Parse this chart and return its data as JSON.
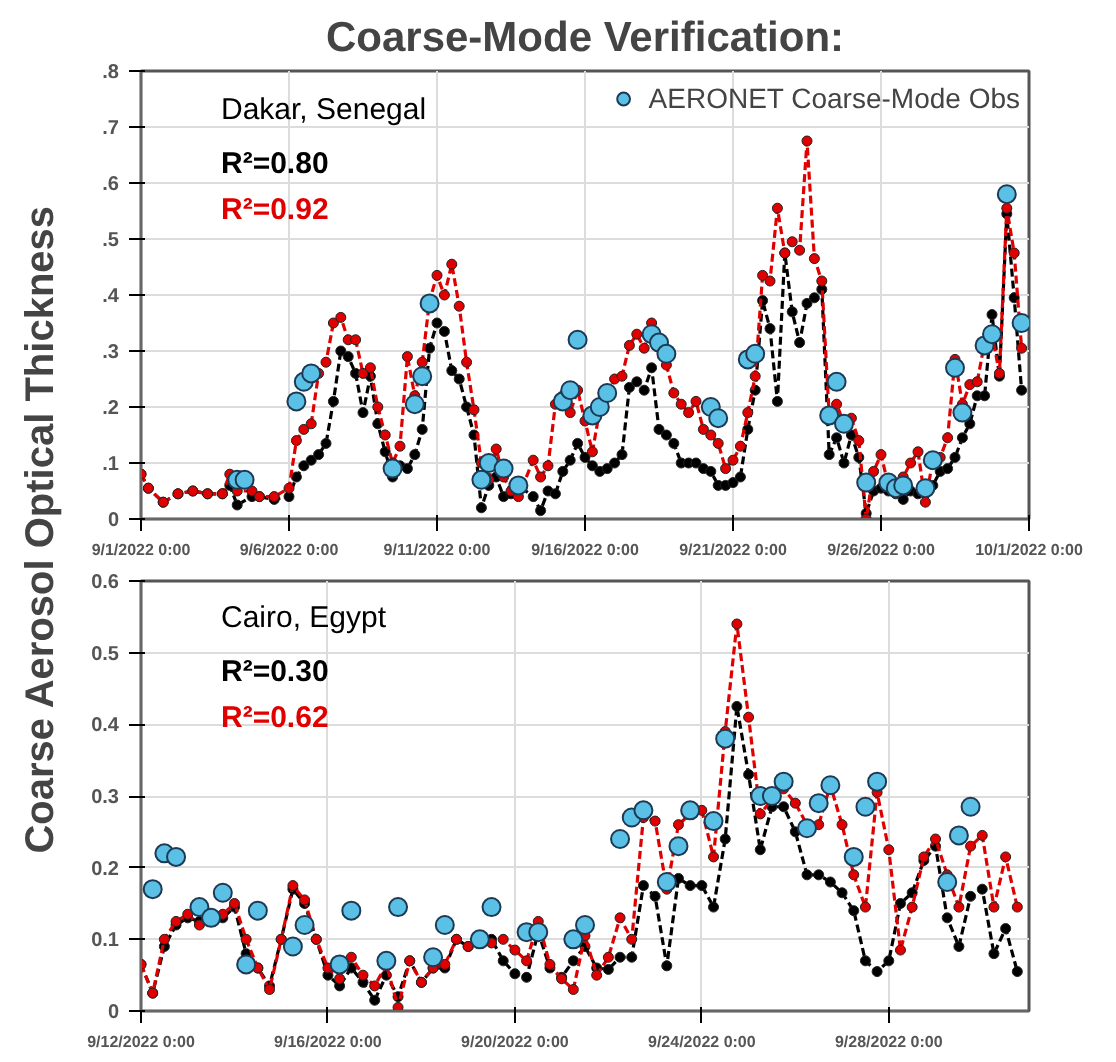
{
  "chart_data": [
    {
      "type": "line",
      "title": "Coarse-Mode Verification:",
      "ylabel": "Coarse Aerosol Optical Thickness",
      "annotations": [
        "Dakar, Senegal",
        "R²=0.80",
        "R²=0.92"
      ],
      "xlim": [
        "2022-09-01",
        "2022-10-01"
      ],
      "xticks": [
        {
          "value": "2022-09-01",
          "label": "9/1/2022 0:00"
        },
        {
          "value": "2022-09-06",
          "label": "9/6/2022 0:00"
        },
        {
          "value": "2022-09-11",
          "label": "9/11/2022 0:00"
        },
        {
          "value": "2022-09-16",
          "label": "9/16/2022 0:00"
        },
        {
          "value": "2022-09-21",
          "label": "9/21/2022 0:00"
        },
        {
          "value": "2022-09-26",
          "label": "9/26/2022 0:00"
        },
        {
          "value": "2022-10-01",
          "label": "10/1/2022 0:00"
        }
      ],
      "ylim": [
        0,
        0.8
      ],
      "yticks": [
        0,
        {
          "value": 0.1,
          "label": ".1"
        },
        {
          "value": 0.2,
          "label": ".2"
        },
        {
          "value": 0.3,
          "label": ".3"
        },
        {
          "value": 0.4,
          "label": ".4"
        },
        {
          "value": 0.5,
          "label": ".5"
        },
        {
          "value": 0.6,
          "label": ".6"
        },
        {
          "value": 0.7,
          "label": ".7"
        },
        {
          "value": 0.8,
          "label": ".8"
        }
      ],
      "grid": true,
      "legend": "top right",
      "marker": "circle",
      "line_style": "dashed",
      "x": [
        "2022-09-01T00:00",
        "2022-09-01T06:00",
        "2022-09-01T18:00",
        "2022-09-02T06:00",
        "2022-09-02T18:00",
        "2022-09-03T06:00",
        "2022-09-03T18:00",
        "2022-09-04T00:00",
        "2022-09-04T06:00",
        "2022-09-04T18:00",
        "2022-09-05T00:00",
        "2022-09-05T12:00",
        "2022-09-06T00:00",
        "2022-09-06T06:00",
        "2022-09-06T12:00",
        "2022-09-06T18:00",
        "2022-09-07T00:00",
        "2022-09-07T06:00",
        "2022-09-07T12:00",
        "2022-09-07T18:00",
        "2022-09-08T00:00",
        "2022-09-08T06:00",
        "2022-09-08T12:00",
        "2022-09-08T18:00",
        "2022-09-09T00:00",
        "2022-09-09T06:00",
        "2022-09-09T12:00",
        "2022-09-09T18:00",
        "2022-09-10T00:00",
        "2022-09-10T06:00",
        "2022-09-10T12:00",
        "2022-09-10T18:00",
        "2022-09-11T00:00",
        "2022-09-11T06:00",
        "2022-09-11T12:00",
        "2022-09-11T18:00",
        "2022-09-12T00:00",
        "2022-09-12T06:00",
        "2022-09-12T12:00",
        "2022-09-12T18:00",
        "2022-09-13T00:00",
        "2022-09-13T06:00",
        "2022-09-13T12:00",
        "2022-09-13T18:00",
        "2022-09-14T06:00",
        "2022-09-14T12:00",
        "2022-09-14T18:00",
        "2022-09-15T00:00",
        "2022-09-15T06:00",
        "2022-09-15T12:00",
        "2022-09-15T18:00",
        "2022-09-16T00:00",
        "2022-09-16T06:00",
        "2022-09-16T12:00",
        "2022-09-16T18:00",
        "2022-09-17T00:00",
        "2022-09-17T06:00",
        "2022-09-17T12:00",
        "2022-09-17T18:00",
        "2022-09-18T00:00",
        "2022-09-18T06:00",
        "2022-09-18T12:00",
        "2022-09-18T18:00",
        "2022-09-19T00:00",
        "2022-09-19T06:00",
        "2022-09-19T12:00",
        "2022-09-19T18:00",
        "2022-09-20T00:00",
        "2022-09-20T06:00",
        "2022-09-20T12:00",
        "2022-09-20T18:00",
        "2022-09-21T00:00",
        "2022-09-21T06:00",
        "2022-09-21T12:00",
        "2022-09-21T18:00",
        "2022-09-22T00:00",
        "2022-09-22T06:00",
        "2022-09-22T12:00",
        "2022-09-22T18:00",
        "2022-09-23T00:00",
        "2022-09-23T06:00",
        "2022-09-23T12:00",
        "2022-09-23T18:00",
        "2022-09-24T00:00",
        "2022-09-24T06:00",
        "2022-09-24T12:00",
        "2022-09-24T18:00",
        "2022-09-25T00:00",
        "2022-09-25T06:00",
        "2022-09-25T12:00",
        "2022-09-25T18:00",
        "2022-09-26T00:00",
        "2022-09-26T06:00",
        "2022-09-26T12:00",
        "2022-09-26T18:00",
        "2022-09-27T00:00",
        "2022-09-27T06:00",
        "2022-09-27T12:00",
        "2022-09-27T18:00",
        "2022-09-28T00:00",
        "2022-09-28T06:00",
        "2022-09-28T12:00",
        "2022-09-28T18:00",
        "2022-09-29T00:00",
        "2022-09-29T06:00",
        "2022-09-29T12:00",
        "2022-09-29T18:00",
        "2022-09-30T00:00",
        "2022-09-30T06:00",
        "2022-09-30T12:00",
        "2022-09-30T18:00"
      ],
      "series": [
        {
          "color": "#000000",
          "values": [
            0.08,
            0.055,
            0.03,
            0.045,
            0.05,
            0.045,
            0.045,
            0.06,
            0.025,
            0.04,
            0.04,
            0.035,
            0.04,
            0.075,
            0.095,
            0.105,
            0.115,
            0.135,
            0.21,
            0.3,
            0.29,
            0.26,
            0.19,
            0.255,
            0.17,
            0.12,
            0.075,
            0.095,
            0.09,
            0.115,
            0.16,
            0.305,
            0.35,
            0.335,
            0.265,
            0.25,
            0.2,
            0.15,
            0.02,
            0.06,
            0.075,
            0.04,
            0.045,
            0.06,
            0.04,
            0.015,
            0.05,
            0.045,
            0.085,
            0.105,
            0.135,
            0.11,
            0.095,
            0.085,
            0.09,
            0.1,
            0.115,
            0.235,
            0.245,
            0.23,
            0.27,
            0.16,
            0.15,
            0.135,
            0.1,
            0.1,
            0.1,
            0.09,
            0.085,
            0.06,
            0.06,
            0.065,
            0.075,
            0.16,
            0.23,
            0.39,
            0.34,
            0.21,
            0.475,
            0.37,
            0.315,
            0.385,
            0.395,
            0.41,
            0.115,
            0.145,
            0.1,
            0.15,
            0.11,
            0.01,
            0.05,
            0.055,
            0.05,
            0.045,
            0.035,
            0.05,
            0.045,
            0.045,
            0.06,
            0.085,
            0.09,
            0.11,
            0.145,
            0.17,
            0.22,
            0.22,
            0.365,
            0.255,
            0.545,
            0.395,
            0.23
          ]
        },
        {
          "color": "#e00000",
          "values": [
            0.08,
            0.055,
            0.03,
            0.045,
            0.05,
            0.045,
            0.045,
            0.08,
            0.05,
            0.05,
            0.04,
            0.04,
            0.055,
            0.14,
            0.16,
            0.17,
            0.26,
            0.28,
            0.35,
            0.36,
            0.32,
            0.32,
            0.26,
            0.27,
            0.2,
            0.15,
            0.1,
            0.13,
            0.29,
            0.22,
            0.28,
            0.39,
            0.435,
            0.4,
            0.455,
            0.38,
            0.28,
            0.195,
            0.1,
            0.07,
            0.125,
            0.075,
            0.05,
            0.04,
            0.105,
            0.075,
            0.095,
            0.205,
            0.22,
            0.19,
            0.23,
            0.175,
            0.12,
            0.195,
            0.22,
            0.25,
            0.255,
            0.31,
            0.33,
            0.305,
            0.35,
            0.315,
            0.275,
            0.225,
            0.205,
            0.19,
            0.21,
            0.16,
            0.15,
            0.135,
            0.09,
            0.105,
            0.13,
            0.19,
            0.255,
            0.435,
            0.425,
            0.555,
            0.475,
            0.495,
            0.48,
            0.675,
            0.465,
            0.425,
            0.185,
            0.205,
            0.17,
            0.18,
            0.14,
            0.0,
            0.085,
            0.115,
            0.06,
            0.055,
            0.075,
            0.1,
            0.12,
            0.03,
            0.105,
            0.11,
            0.145,
            0.285,
            0.205,
            0.24,
            0.245,
            0.315,
            0.33,
            0.26,
            0.555,
            0.475,
            0.305
          ]
        },
        {
          "type": "scatter",
          "name": "AERONET Coarse-Mode Obs",
          "color": "#5bc0e6",
          "x": [
            "2022-09-04T06:00",
            "2022-09-04T12:00",
            "2022-09-06T06:00",
            "2022-09-06T12:00",
            "2022-09-06T18:00",
            "2022-09-09T12:00",
            "2022-09-10T06:00",
            "2022-09-10T12:00",
            "2022-09-10T18:00",
            "2022-09-12T12:00",
            "2022-09-12T18:00",
            "2022-09-13T06:00",
            "2022-09-13T18:00",
            "2022-09-15T06:00",
            "2022-09-15T12:00",
            "2022-09-15T18:00",
            "2022-09-16T06:00",
            "2022-09-16T12:00",
            "2022-09-16T18:00",
            "2022-09-18T06:00",
            "2022-09-18T12:00",
            "2022-09-18T18:00",
            "2022-09-20T06:00",
            "2022-09-20T12:00",
            "2022-09-21T12:00",
            "2022-09-21T18:00",
            "2022-09-24T06:00",
            "2022-09-24T12:00",
            "2022-09-24T18:00",
            "2022-09-25T12:00",
            "2022-09-26T06:00",
            "2022-09-26T12:00",
            "2022-09-26T18:00",
            "2022-09-27T12:00",
            "2022-09-27T18:00",
            "2022-09-28T12:00",
            "2022-09-28T18:00",
            "2022-09-29T12:00",
            "2022-09-29T18:00",
            "2022-09-30T06:00",
            "2022-09-30T18:00"
          ],
          "values": [
            0.07,
            0.07,
            0.21,
            0.245,
            0.26,
            0.09,
            0.205,
            0.255,
            0.385,
            0.07,
            0.1,
            0.09,
            0.06,
            0.21,
            0.23,
            0.32,
            0.185,
            0.2,
            0.225,
            0.33,
            0.315,
            0.295,
            0.2,
            0.18,
            0.285,
            0.295,
            0.185,
            0.245,
            0.17,
            0.065,
            0.065,
            0.055,
            0.06,
            0.055,
            0.105,
            0.27,
            0.19,
            0.31,
            0.33,
            0.58,
            0.35
          ]
        }
      ]
    },
    {
      "type": "line",
      "annotations": [
        "Cairo, Egypt",
        "R²=0.30",
        "R²=0.62"
      ],
      "xlim": [
        "2022-09-12",
        "2022-10-01"
      ],
      "xticks": [
        {
          "value": "2022-09-12",
          "label": "9/12/2022 0:00"
        },
        {
          "value": "2022-09-16",
          "label": "9/16/2022 0:00"
        },
        {
          "value": "2022-09-20",
          "label": "9/20/2022 0:00"
        },
        {
          "value": "2022-09-24",
          "label": "9/24/2022 0:00"
        },
        {
          "value": "2022-09-28",
          "label": "9/28/2022 0:00"
        }
      ],
      "ylim": [
        0,
        0.6
      ],
      "yticks": [
        0,
        0.1,
        0.2,
        0.3,
        0.4,
        0.5,
        0.6
      ],
      "grid": true,
      "marker": "circle",
      "line_style": "dashed",
      "x": [
        "2022-09-12T00:00",
        "2022-09-12T06:00",
        "2022-09-12T12:00",
        "2022-09-12T18:00",
        "2022-09-13T00:00",
        "2022-09-13T06:00",
        "2022-09-13T12:00",
        "2022-09-13T18:00",
        "2022-09-14T00:00",
        "2022-09-14T06:00",
        "2022-09-14T12:00",
        "2022-09-14T18:00",
        "2022-09-15T00:00",
        "2022-09-15T06:00",
        "2022-09-15T12:00",
        "2022-09-15T18:00",
        "2022-09-16T00:00",
        "2022-09-16T06:00",
        "2022-09-16T12:00",
        "2022-09-16T18:00",
        "2022-09-17T00:00",
        "2022-09-17T06:00",
        "2022-09-17T12:00",
        "2022-09-17T18:00",
        "2022-09-18T00:00",
        "2022-09-18T06:00",
        "2022-09-18T12:00",
        "2022-09-18T18:00",
        "2022-09-19T00:00",
        "2022-09-19T06:00",
        "2022-09-19T12:00",
        "2022-09-19T18:00",
        "2022-09-20T00:00",
        "2022-09-20T06:00",
        "2022-09-20T12:00",
        "2022-09-20T18:00",
        "2022-09-21T00:00",
        "2022-09-21T06:00",
        "2022-09-21T12:00",
        "2022-09-21T18:00",
        "2022-09-22T00:00",
        "2022-09-22T06:00",
        "2022-09-22T12:00",
        "2022-09-22T18:00",
        "2022-09-23T00:00",
        "2022-09-23T06:00",
        "2022-09-23T12:00",
        "2022-09-23T18:00",
        "2022-09-24T00:00",
        "2022-09-24T06:00",
        "2022-09-24T12:00",
        "2022-09-24T18:00",
        "2022-09-25T00:00",
        "2022-09-25T06:00",
        "2022-09-25T12:00",
        "2022-09-25T18:00",
        "2022-09-26T00:00",
        "2022-09-26T06:00",
        "2022-09-26T12:00",
        "2022-09-26T18:00",
        "2022-09-27T00:00",
        "2022-09-27T06:00",
        "2022-09-27T12:00",
        "2022-09-27T18:00",
        "2022-09-28T00:00",
        "2022-09-28T06:00",
        "2022-09-28T12:00",
        "2022-09-28T18:00",
        "2022-09-29T00:00",
        "2022-09-29T06:00",
        "2022-09-29T12:00",
        "2022-09-29T18:00",
        "2022-09-30T00:00",
        "2022-09-30T06:00",
        "2022-09-30T12:00",
        "2022-09-30T18:00"
      ],
      "series": [
        {
          "color": "#000000",
          "values": [
            0.065,
            0.025,
            0.09,
            0.12,
            0.13,
            0.125,
            0.125,
            0.13,
            0.145,
            0.08,
            0.06,
            0.035,
            0.1,
            0.17,
            0.15,
            0.1,
            0.05,
            0.035,
            0.06,
            0.04,
            0.015,
            0.05,
            0.02,
            0.07,
            0.04,
            0.06,
            0.06,
            0.1,
            0.09,
            0.095,
            0.1,
            0.07,
            0.052,
            0.047,
            0.11,
            0.06,
            0.047,
            0.07,
            0.09,
            0.06,
            0.058,
            0.075,
            0.075,
            0.175,
            0.16,
            0.063,
            0.185,
            0.175,
            0.175,
            0.145,
            0.24,
            0.425,
            0.33,
            0.225,
            0.285,
            0.285,
            0.25,
            0.19,
            0.19,
            0.18,
            0.165,
            0.14,
            0.07,
            0.055,
            0.07,
            0.15,
            0.165,
            0.21,
            0.23,
            0.13,
            0.09,
            0.16,
            0.17,
            0.08,
            0.115,
            0.055
          ]
        },
        {
          "color": "#e00000",
          "values": [
            0.065,
            0.025,
            0.1,
            0.125,
            0.135,
            0.12,
            0.125,
            0.135,
            0.15,
            0.1,
            0.06,
            0.03,
            0.1,
            0.175,
            0.155,
            0.1,
            0.06,
            0.045,
            0.075,
            0.05,
            0.035,
            0.065,
            0.005,
            0.07,
            0.04,
            0.06,
            0.065,
            0.1,
            0.09,
            0.095,
            0.095,
            0.1,
            0.085,
            0.07,
            0.125,
            0.065,
            0.045,
            0.03,
            0.105,
            0.05,
            0.075,
            0.13,
            0.1,
            0.27,
            0.265,
            0.17,
            0.26,
            0.275,
            0.28,
            0.215,
            0.39,
            0.54,
            0.41,
            0.275,
            0.295,
            0.31,
            0.29,
            0.26,
            0.26,
            0.315,
            0.26,
            0.19,
            0.145,
            0.305,
            0.225,
            0.085,
            0.145,
            0.215,
            0.24,
            0.19,
            0.145,
            0.23,
            0.245,
            0.145,
            0.215,
            0.145
          ]
        },
        {
          "type": "scatter",
          "color": "#5bc0e6",
          "x": [
            "2022-09-12T06:00",
            "2022-09-12T12:00",
            "2022-09-12T18:00",
            "2022-09-13T06:00",
            "2022-09-13T12:00",
            "2022-09-13T18:00",
            "2022-09-14T06:00",
            "2022-09-14T12:00",
            "2022-09-15T06:00",
            "2022-09-15T12:00",
            "2022-09-16T06:00",
            "2022-09-16T12:00",
            "2022-09-17T06:00",
            "2022-09-17T12:00",
            "2022-09-18T06:00",
            "2022-09-18T12:00",
            "2022-09-19T06:00",
            "2022-09-19T12:00",
            "2022-09-20T06:00",
            "2022-09-20T12:00",
            "2022-09-21T06:00",
            "2022-09-21T12:00",
            "2022-09-22T06:00",
            "2022-09-22T12:00",
            "2022-09-22T18:00",
            "2022-09-23T06:00",
            "2022-09-23T12:00",
            "2022-09-23T18:00",
            "2022-09-24T06:00",
            "2022-09-24T12:00",
            "2022-09-25T06:00",
            "2022-09-25T12:00",
            "2022-09-25T18:00",
            "2022-09-26T06:00",
            "2022-09-26T12:00",
            "2022-09-26T18:00",
            "2022-09-27T06:00",
            "2022-09-27T12:00",
            "2022-09-27T18:00",
            "2022-09-29T06:00",
            "2022-09-29T12:00",
            "2022-09-29T18:00"
          ],
          "values": [
            0.17,
            0.22,
            0.215,
            0.145,
            0.13,
            0.165,
            0.065,
            0.14,
            0.09,
            0.12,
            0.065,
            0.14,
            0.07,
            0.145,
            0.075,
            0.12,
            0.1,
            0.145,
            0.11,
            0.11,
            0.1,
            0.12,
            0.24,
            0.27,
            0.28,
            0.18,
            0.23,
            0.28,
            0.265,
            0.38,
            0.3,
            0.3,
            0.32,
            0.255,
            0.29,
            0.315,
            0.215,
            0.285,
            0.32,
            0.18,
            0.245,
            0.285
          ]
        }
      ]
    }
  ]
}
